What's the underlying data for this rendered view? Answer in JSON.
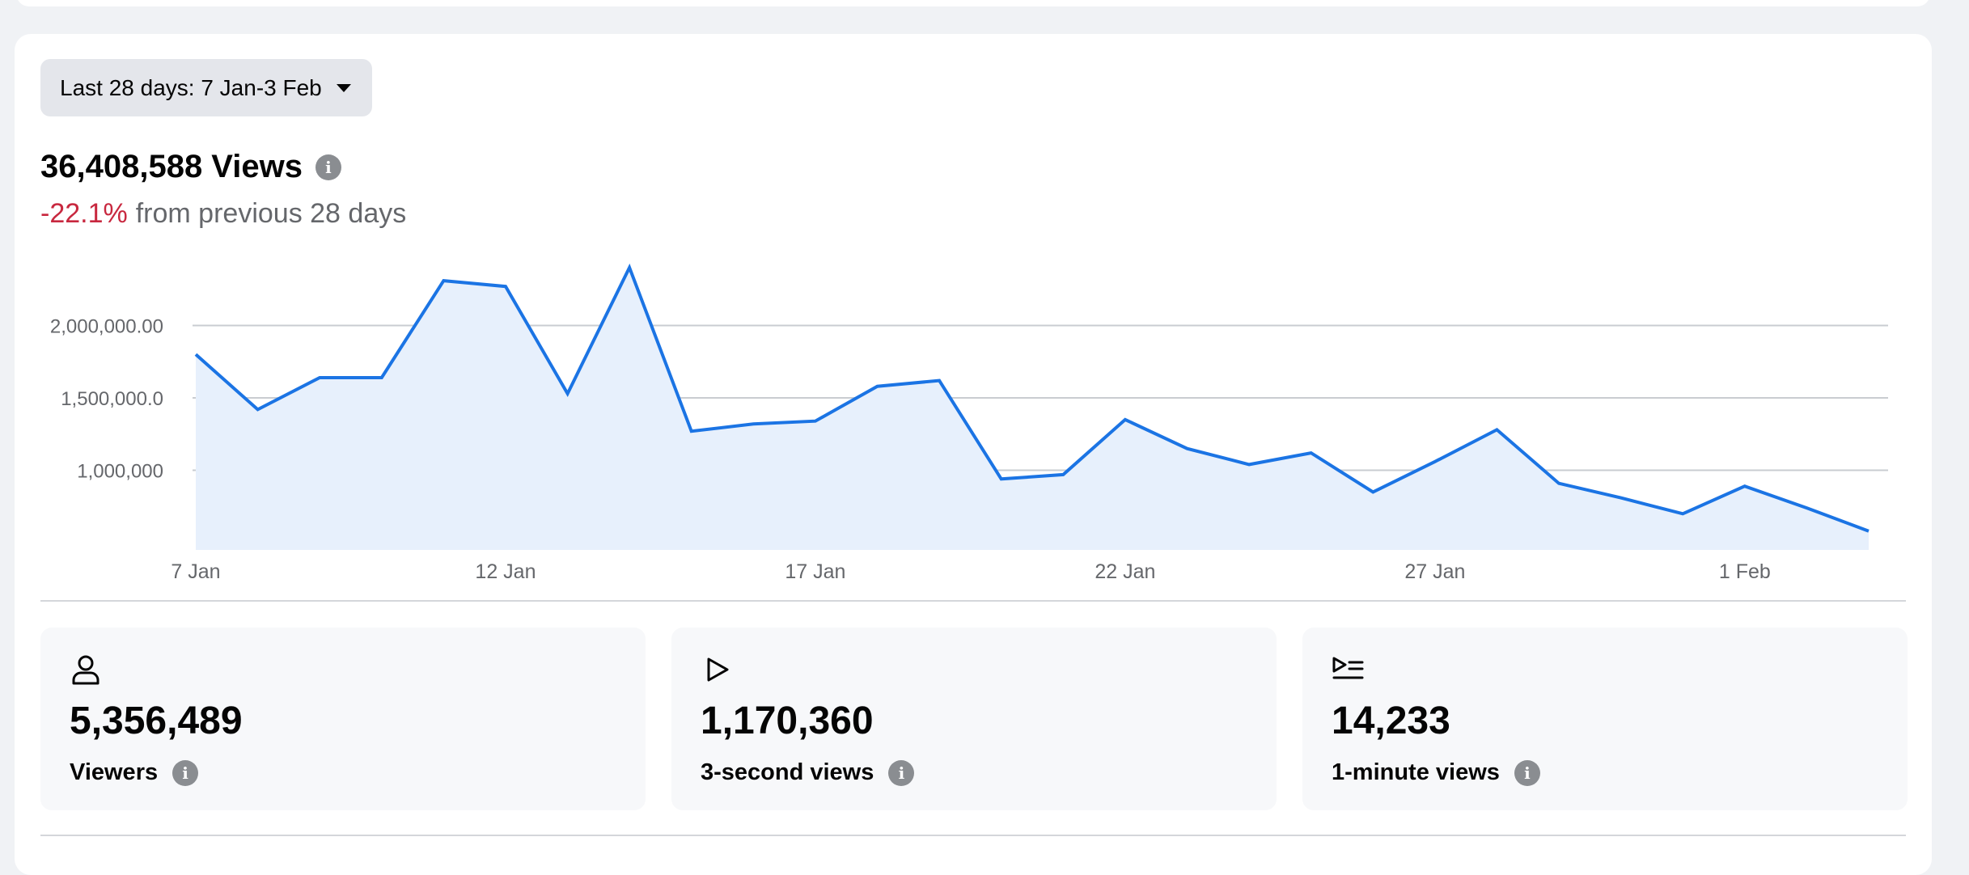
{
  "date_range": {
    "label": "Last 28 days: 7 Jan-3 Feb"
  },
  "headline": {
    "value": "36,408,588 Views",
    "info_icon": "info-icon"
  },
  "change": {
    "value": "-22.1%",
    "text": "from previous 28 days"
  },
  "colors": {
    "line": "#1b74e4",
    "fill": "#e7f0fc",
    "negative": "#c8283f",
    "grid": "#c9ccd1"
  },
  "chart_data": {
    "type": "area",
    "x": [
      "7 Jan",
      "8 Jan",
      "9 Jan",
      "10 Jan",
      "11 Jan",
      "12 Jan",
      "13 Jan",
      "14 Jan",
      "15 Jan",
      "16 Jan",
      "17 Jan",
      "18 Jan",
      "19 Jan",
      "20 Jan",
      "21 Jan",
      "22 Jan",
      "23 Jan",
      "24 Jan",
      "25 Jan",
      "26 Jan",
      "27 Jan",
      "28 Jan",
      "29 Jan",
      "30 Jan",
      "31 Jan",
      "1 Feb",
      "2 Feb",
      "3 Feb"
    ],
    "x_tick_labels": [
      "7 Jan",
      "12 Jan",
      "17 Jan",
      "22 Jan",
      "27 Jan",
      "1 Feb"
    ],
    "y_tick_values": [
      1000000,
      1500000,
      2000000
    ],
    "y_tick_labels": [
      "1,000,000",
      "1,500,000.0",
      "2,000,000.00"
    ],
    "ylim": [
      450000,
      2450000
    ],
    "grid": true,
    "series": [
      {
        "values": [
          1800000,
          1420000,
          1640000,
          1640000,
          2310000,
          2270000,
          1530000,
          2400000,
          1270000,
          1320000,
          1340000,
          1580000,
          1620000,
          940000,
          970000,
          1350000,
          1150000,
          1040000,
          1120000,
          850000,
          1060000,
          1280000,
          910000,
          810000,
          700000,
          890000,
          740000,
          580000
        ]
      }
    ]
  },
  "stats": [
    {
      "icon": "person-icon",
      "value": "5,356,489",
      "label": "Viewers"
    },
    {
      "icon": "play-icon",
      "value": "1,170,360",
      "label": "3-second views"
    },
    {
      "icon": "play-list-icon",
      "value": "14,233",
      "label": "1-minute views"
    }
  ]
}
